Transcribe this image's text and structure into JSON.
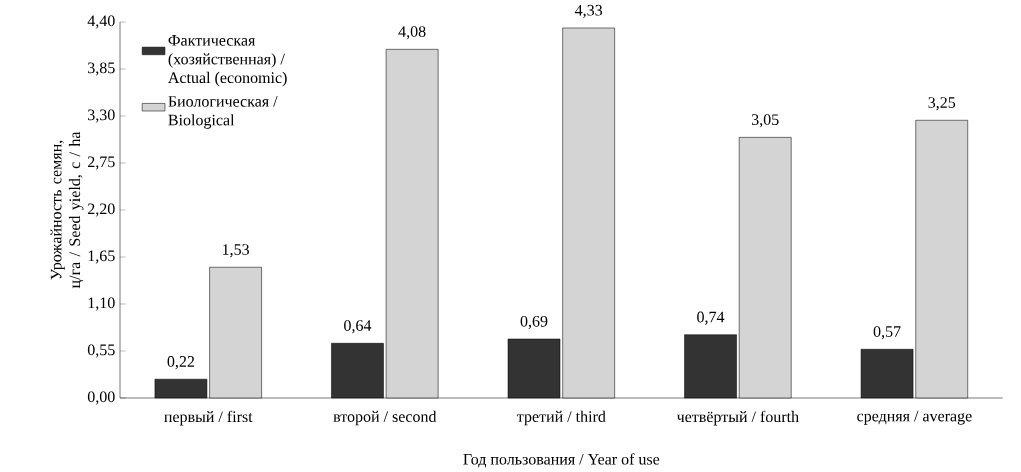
{
  "chart_data": {
    "type": "bar",
    "xlabel": "Год пользования /  Year of use",
    "ylabel": "Урожайность семян, ц/га / Seed yield, c / ha",
    "categories": [
      "первый / first",
      "второй / second",
      "третий / third",
      "четвёртый / fourth",
      "средняя / average"
    ],
    "series": [
      {
        "name": "Фактическая (хозяйственная) / Actual (economic)",
        "color": "#333333",
        "values": [
          0.22,
          0.64,
          0.69,
          0.74,
          0.57
        ],
        "value_labels": [
          "0,22",
          "0,64",
          "0,69",
          "0,74",
          "0,57"
        ]
      },
      {
        "name": "Биологическая / Biological",
        "color": "#d4d4d4",
        "values": [
          1.53,
          4.08,
          4.33,
          3.05,
          3.25
        ],
        "value_labels": [
          "1,53",
          "4,08",
          "4,33",
          "3,05",
          "3,25"
        ]
      }
    ],
    "ylim": [
      0,
      4.4
    ],
    "yticks": [
      {
        "value": 0,
        "label": "0,00"
      },
      {
        "value": 0.55,
        "label": "0,55"
      },
      {
        "value": 1.1,
        "label": "1,10"
      },
      {
        "value": 1.65,
        "label": "1,65"
      },
      {
        "value": 2.2,
        "label": "2,20"
      },
      {
        "value": 2.75,
        "label": "2,75"
      },
      {
        "value": 3.3,
        "label": "3,30"
      },
      {
        "value": 3.85,
        "label": "3,85"
      },
      {
        "value": 4.4,
        "label": "4,40"
      }
    ],
    "legend": "top left",
    "grid": false
  }
}
